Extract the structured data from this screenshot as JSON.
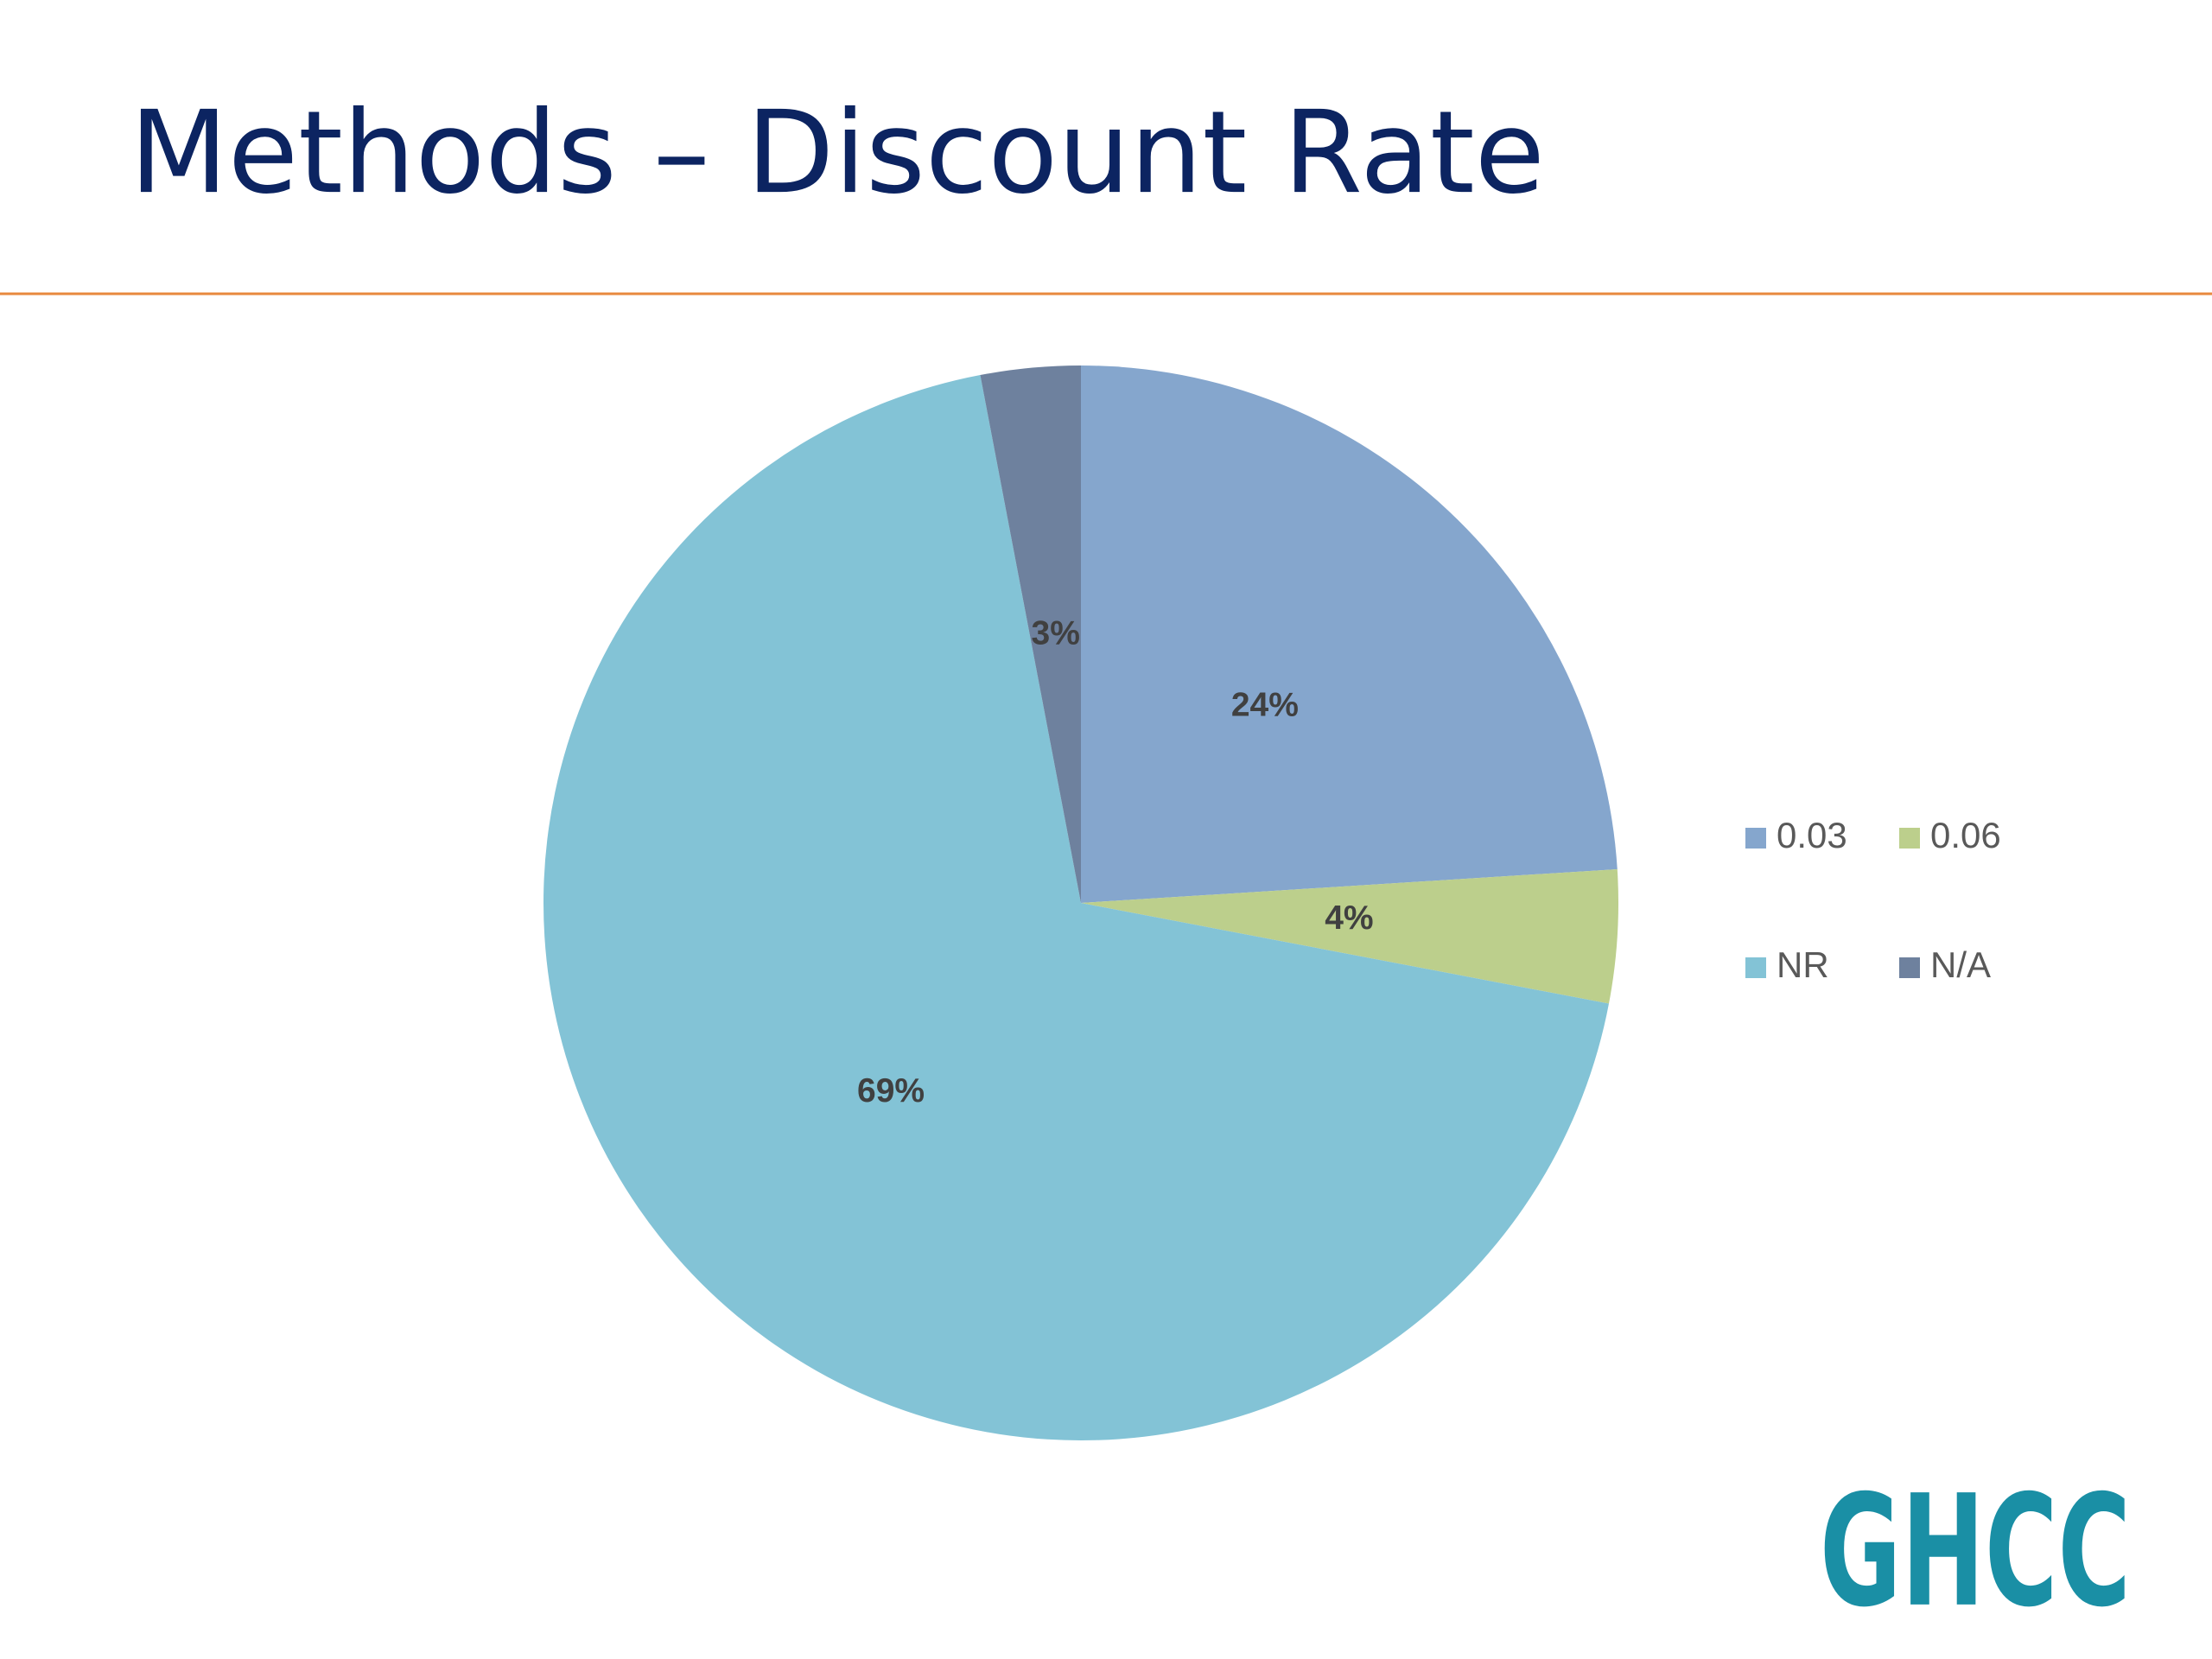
{
  "chart_data": {
    "type": "pie",
    "title": "Methods – Discount Rate",
    "categories": [
      "0.03",
      "0.06",
      "NR",
      "N/A"
    ],
    "values": [
      24,
      4,
      69,
      3
    ],
    "value_labels": [
      "24%",
      "4%",
      "69%",
      "3%"
    ],
    "colors": [
      "#85a6cd",
      "#bccf8c",
      "#83c3d6",
      "#6e819e"
    ],
    "legend": "right"
  },
  "logo": "GHCC"
}
